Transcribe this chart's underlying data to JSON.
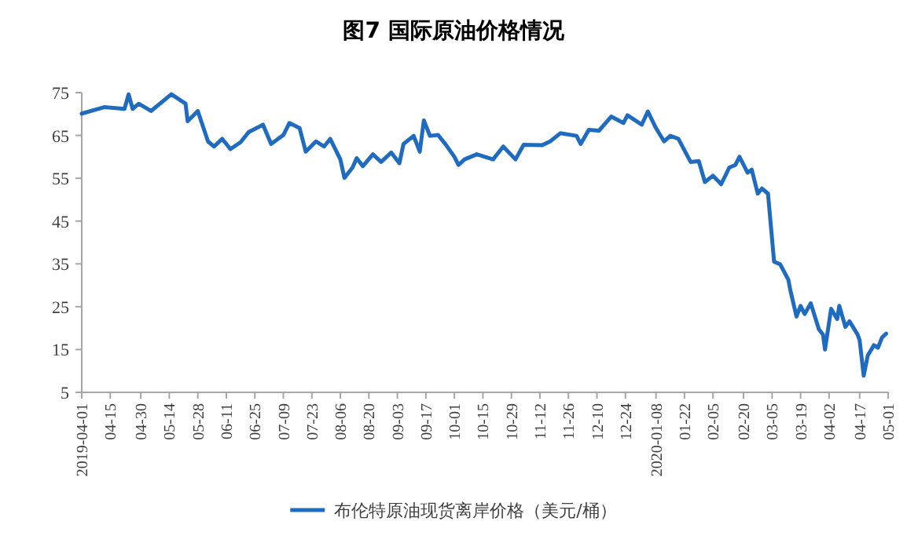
{
  "chart_data": {
    "type": "line",
    "title": "图7  国际原油价格情况",
    "x": [
      "2019-04-01",
      "2019-04-12",
      "2019-04-22",
      "2019-04-24",
      "2019-04-26",
      "2019-04-29",
      "2019-05-05",
      "2019-05-15",
      "2019-05-22",
      "2019-05-23",
      "2019-05-28",
      "2019-06-02",
      "2019-06-05",
      "2019-06-09",
      "2019-06-13",
      "2019-06-18",
      "2019-06-22",
      "2019-06-29",
      "2019-07-03",
      "2019-07-09",
      "2019-07-12",
      "2019-07-17",
      "2019-07-20",
      "2019-07-25",
      "2019-07-29",
      "2019-08-01",
      "2019-08-06",
      "2019-08-08",
      "2019-08-12",
      "2019-08-14",
      "2019-08-17",
      "2019-08-22",
      "2019-08-26",
      "2019-08-31",
      "2019-09-04",
      "2019-09-06",
      "2019-09-11",
      "2019-09-14",
      "2019-09-16",
      "2019-09-19",
      "2019-09-23",
      "2019-09-27",
      "2019-10-01",
      "2019-10-03",
      "2019-10-06",
      "2019-10-12",
      "2019-10-20",
      "2019-10-25",
      "2019-10-31",
      "2019-11-04",
      "2019-11-13",
      "2019-11-17",
      "2019-11-22",
      "2019-11-30",
      "2019-12-02",
      "2019-12-06",
      "2019-12-11",
      "2019-12-17",
      "2019-12-23",
      "2019-12-25",
      "2020-01-01",
      "2020-01-04",
      "2020-01-08",
      "2020-01-12",
      "2020-01-15",
      "2020-01-19",
      "2020-01-25",
      "2020-01-29",
      "2020-02-01",
      "2020-02-05",
      "2020-02-09",
      "2020-02-13",
      "2020-02-16",
      "2020-02-18",
      "2020-02-22",
      "2020-02-24",
      "2020-02-27",
      "2020-02-29",
      "2020-03-03",
      "2020-03-06",
      "2020-03-09",
      "2020-03-13",
      "2020-03-14",
      "2020-03-17",
      "2020-03-19",
      "2020-03-21",
      "2020-03-24",
      "2020-03-28",
      "2020-03-30",
      "2020-03-31",
      "2020-04-03",
      "2020-04-06",
      "2020-04-07",
      "2020-04-10",
      "2020-04-12",
      "2020-04-16",
      "2020-04-17",
      "2020-04-19",
      "2020-04-21",
      "2020-04-24",
      "2020-04-26",
      "2020-04-28",
      "2020-04-30"
    ],
    "series": [
      {
        "name": "布伦特原油现货离岸价格（美元/桶）",
        "color": "#1f6bc0",
        "values": [
          70.1,
          71.6,
          71.2,
          74.6,
          71.2,
          72.4,
          70.7,
          74.6,
          72.4,
          68.3,
          70.7,
          63.6,
          62.4,
          64.2,
          61.8,
          63.4,
          65.8,
          67.5,
          63.0,
          65.1,
          67.9,
          66.7,
          61.2,
          63.6,
          62.4,
          64.2,
          59.4,
          55.1,
          57.5,
          59.7,
          57.8,
          60.6,
          58.8,
          61.0,
          58.5,
          63.0,
          64.9,
          61.2,
          68.5,
          64.9,
          65.1,
          62.7,
          60.0,
          58.1,
          59.4,
          60.6,
          59.4,
          62.4,
          59.4,
          62.8,
          62.7,
          63.6,
          65.5,
          64.9,
          63.0,
          66.3,
          66.1,
          69.4,
          67.9,
          69.7,
          67.5,
          70.6,
          66.7,
          63.6,
          64.9,
          64.2,
          58.8,
          59.0,
          54.1,
          55.6,
          53.6,
          57.5,
          58.1,
          60.0,
          56.3,
          57.0,
          51.4,
          52.6,
          51.4,
          35.5,
          34.9,
          31.3,
          28.8,
          22.7,
          25.2,
          23.3,
          25.8,
          19.7,
          18.5,
          15.0,
          24.5,
          22.1,
          25.2,
          20.3,
          21.6,
          18.5,
          17.2,
          8.9,
          13.6,
          16.0,
          15.4,
          17.8,
          18.7
        ]
      }
    ],
    "xlim": [
      "2019-04-01",
      "2020-05-01"
    ],
    "xticks": [
      {
        "value": "2019-04-01",
        "label": "2019-04-01"
      },
      {
        "value": "2019-04-15",
        "label": "04-15"
      },
      {
        "value": "2019-04-30",
        "label": "04-30"
      },
      {
        "value": "2019-05-14",
        "label": "05-14"
      },
      {
        "value": "2019-05-28",
        "label": "05-28"
      },
      {
        "value": "2019-06-11",
        "label": "06-11"
      },
      {
        "value": "2019-06-25",
        "label": "06-25"
      },
      {
        "value": "2019-07-09",
        "label": "07-09"
      },
      {
        "value": "2019-07-23",
        "label": "07-23"
      },
      {
        "value": "2019-08-06",
        "label": "08-06"
      },
      {
        "value": "2019-08-20",
        "label": "08-20"
      },
      {
        "value": "2019-09-03",
        "label": "09-03"
      },
      {
        "value": "2019-09-17",
        "label": "09-17"
      },
      {
        "value": "2019-10-01",
        "label": "10-01"
      },
      {
        "value": "2019-10-15",
        "label": "10-15"
      },
      {
        "value": "2019-10-29",
        "label": "10-29"
      },
      {
        "value": "2019-11-12",
        "label": "11-12"
      },
      {
        "value": "2019-11-26",
        "label": "11-26"
      },
      {
        "value": "2019-12-10",
        "label": "12-10"
      },
      {
        "value": "2019-12-24",
        "label": "12-24"
      },
      {
        "value": "2020-01-08",
        "label": "2020-01-08"
      },
      {
        "value": "2020-01-22",
        "label": "01-22"
      },
      {
        "value": "2020-02-05",
        "label": "02-05"
      },
      {
        "value": "2020-02-20",
        "label": "02-20"
      },
      {
        "value": "2020-03-05",
        "label": "03-05"
      },
      {
        "value": "2020-03-19",
        "label": "03-19"
      },
      {
        "value": "2020-04-02",
        "label": "04-02"
      },
      {
        "value": "2020-04-17",
        "label": "04-17"
      },
      {
        "value": "2020-05-01",
        "label": "05-01"
      }
    ],
    "ylim": [
      5,
      75
    ],
    "yticks": [
      5,
      15,
      25,
      35,
      45,
      55,
      65,
      75
    ],
    "legend": "bottom",
    "grid": false,
    "marker": "none",
    "line_style": "solid"
  }
}
